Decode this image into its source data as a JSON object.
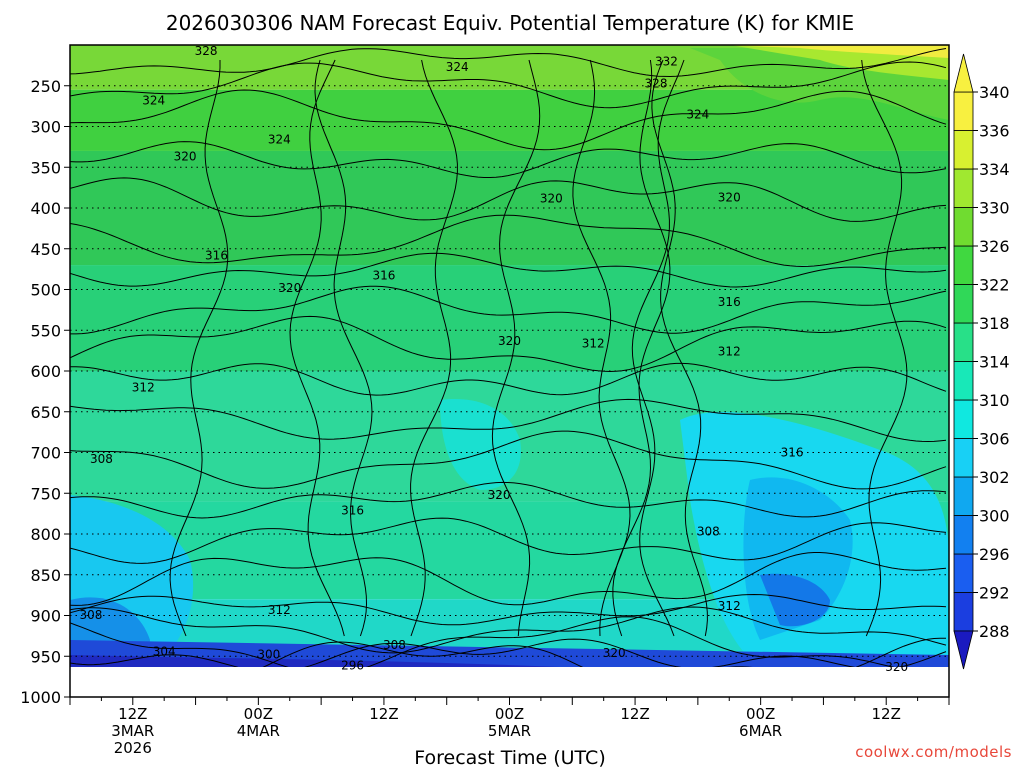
{
  "chart_data": {
    "type": "heatmap",
    "title": "2026030306 NAM Forecast Equiv. Potential Temperature (K) for KMIE",
    "xlabel": "Forecast Time (UTC)",
    "ylabel": "",
    "credit": "coolwx.com/models",
    "x_ticks": [
      {
        "hour": 6,
        "lines": [
          "12Z",
          "3MAR",
          "2026"
        ]
      },
      {
        "hour": 18,
        "lines": [
          "00Z",
          "4MAR"
        ]
      },
      {
        "hour": 30,
        "lines": [
          "12Z"
        ]
      },
      {
        "hour": 42,
        "lines": [
          "00Z",
          "5MAR"
        ]
      },
      {
        "hour": 54,
        "lines": [
          "12Z"
        ]
      },
      {
        "hour": 66,
        "lines": [
          "00Z",
          "6MAR"
        ]
      },
      {
        "hour": 78,
        "lines": [
          "12Z"
        ]
      }
    ],
    "xlim": [
      0,
      84
    ],
    "y_ticks": [
      250,
      300,
      350,
      400,
      450,
      500,
      550,
      600,
      650,
      700,
      750,
      800,
      850,
      900,
      950,
      1000
    ],
    "ylim": [
      1000,
      200
    ],
    "ground_level_hpa": 975,
    "colorbar": {
      "labels": [
        288,
        292,
        296,
        300,
        302,
        306,
        310,
        314,
        318,
        322,
        326,
        330,
        334,
        336,
        340
      ],
      "colors": [
        "#1f25c8",
        "#1b3ee0",
        "#1a5ef0",
        "#1280f0",
        "#10a8f0",
        "#18d0f5",
        "#10e8e0",
        "#18e8b8",
        "#28e088",
        "#30d858",
        "#40d840",
        "#70dc30",
        "#a0e830",
        "#d8f030",
        "#f8f040"
      ]
    },
    "contour_labels": [
      {
        "hour": 13,
        "hpa": 212,
        "text": "328"
      },
      {
        "hour": 37,
        "hpa": 232,
        "text": "324"
      },
      {
        "hour": 57,
        "hpa": 225,
        "text": "332"
      },
      {
        "hour": 56,
        "hpa": 252,
        "text": "328"
      },
      {
        "hour": 8,
        "hpa": 273,
        "text": "324"
      },
      {
        "hour": 60,
        "hpa": 290,
        "text": "324"
      },
      {
        "hour": 20,
        "hpa": 321,
        "text": "324"
      },
      {
        "hour": 11,
        "hpa": 342,
        "text": "320"
      },
      {
        "hour": 46,
        "hpa": 393,
        "text": "320"
      },
      {
        "hour": 63,
        "hpa": 392,
        "text": "320"
      },
      {
        "hour": 14,
        "hpa": 463,
        "text": "316"
      },
      {
        "hour": 30,
        "hpa": 488,
        "text": "316"
      },
      {
        "hour": 21,
        "hpa": 503,
        "text": "320"
      },
      {
        "hour": 63,
        "hpa": 520,
        "text": "316"
      },
      {
        "hour": 42,
        "hpa": 568,
        "text": "320"
      },
      {
        "hour": 50,
        "hpa": 571,
        "text": "312"
      },
      {
        "hour": 63,
        "hpa": 581,
        "text": "312"
      },
      {
        "hour": 7,
        "hpa": 625,
        "text": "312"
      },
      {
        "hour": 3,
        "hpa": 713,
        "text": "308"
      },
      {
        "hour": 69,
        "hpa": 705,
        "text": "316"
      },
      {
        "hour": 41,
        "hpa": 757,
        "text": "320"
      },
      {
        "hour": 27,
        "hpa": 776,
        "text": "316"
      },
      {
        "hour": 61,
        "hpa": 802,
        "text": "308"
      },
      {
        "hour": 2,
        "hpa": 904,
        "text": "308"
      },
      {
        "hour": 20,
        "hpa": 898,
        "text": "312"
      },
      {
        "hour": 63,
        "hpa": 893,
        "text": "312"
      },
      {
        "hour": 9,
        "hpa": 949,
        "text": "304"
      },
      {
        "hour": 19,
        "hpa": 953,
        "text": "300"
      },
      {
        "hour": 27,
        "hpa": 966,
        "text": "296"
      },
      {
        "hour": 31,
        "hpa": 941,
        "text": "308"
      },
      {
        "hour": 52,
        "hpa": 951,
        "text": "320"
      },
      {
        "hour": 79,
        "hpa": 968,
        "text": "320"
      }
    ]
  }
}
